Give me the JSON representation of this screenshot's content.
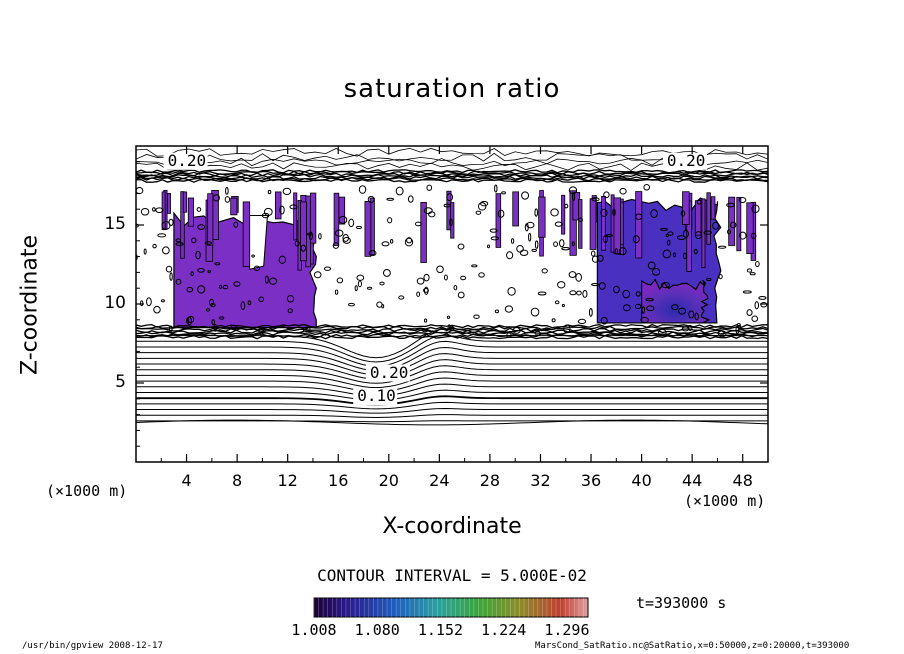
{
  "chart_data": {
    "type": "heatmap",
    "title": "saturation ratio",
    "xlabel": "X-coordinate",
    "ylabel": "Z-coordinate",
    "x_unit": "(×1000 m)",
    "y_unit": "(×1000 m)",
    "xlim": [
      0,
      50
    ],
    "ylim": [
      0,
      20
    ],
    "x_ticks": [
      "4",
      "8",
      "12",
      "16",
      "20",
      "24",
      "28",
      "32",
      "36",
      "40",
      "44",
      "48"
    ],
    "y_ticks": [
      "15",
      "10",
      "5"
    ],
    "contour_interval_text": "CONTOUR INTERVAL = 5.000E-02",
    "contour_labels": [
      {
        "text": "0.20",
        "x": 2.5,
        "z": 19.0
      },
      {
        "text": "0.20",
        "x": 42.0,
        "z": 19.0
      },
      {
        "text": "0.20",
        "x": 18.5,
        "z": 5.6
      },
      {
        "text": "0.10",
        "x": 17.5,
        "z": 4.1
      }
    ],
    "colorbar": {
      "min": 1.008,
      "max": 1.32,
      "tick_labels": [
        "1.008",
        "1.080",
        "1.152",
        "1.224",
        "1.296"
      ]
    },
    "shaded_regions": [
      {
        "name": "supersaturated-left",
        "x_range": [
          3,
          14
        ],
        "z_range": [
          8.5,
          15.5
        ],
        "level": 1.05
      },
      {
        "name": "supersaturated-right",
        "x_range": [
          36.5,
          46
        ],
        "z_range": [
          8.8,
          16.5
        ],
        "level": 1.08
      },
      {
        "name": "supersaturated-core",
        "x_range": [
          40,
          45
        ],
        "z_range": [
          8.8,
          11.5
        ],
        "level": 1.13
      }
    ],
    "time_label": "t=393000 s"
  },
  "footer": {
    "left": "/usr/bin/gpview  2008-12-17",
    "right": "MarsCond_SatRatio.nc@SatRatio,x=0:50000,z=0:20000,t=393000"
  }
}
